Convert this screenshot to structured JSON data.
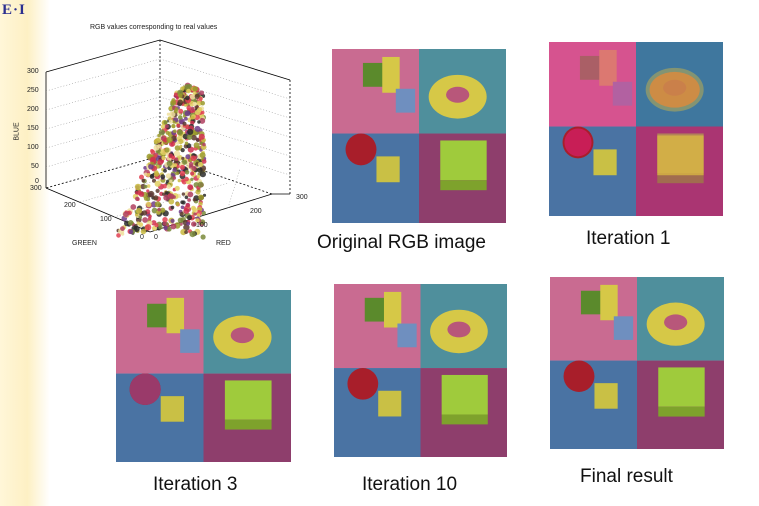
{
  "slide": {
    "logo": "E·I"
  },
  "plot": {
    "title": "RGB values corresponding to real values",
    "zlabel": "BLUE",
    "xlabel": "GREEN",
    "ylabel": "RED",
    "z_ticks": [
      "300",
      "250",
      "200",
      "150",
      "100",
      "50",
      "0"
    ],
    "green_ticks": [
      "300",
      "200",
      "100",
      "0"
    ],
    "red_ticks": [
      "0",
      "100",
      "200",
      "300"
    ]
  },
  "captions": {
    "original": "Original RGB image",
    "iter1": "Iteration 1",
    "iter3": "Iteration 3",
    "iter10": "Iteration 10",
    "final": "Final result"
  },
  "colors": {
    "pink_quadrant": "#c96b91",
    "teal_quadrant": "#4f8f9c",
    "blue_quadrant": "#4a73a3",
    "magenta_quadrant": "#8e3e6c",
    "yellow_object": "#d6c847",
    "green_object": "#9fcb3c",
    "red_sphere": "#a81e2a"
  }
}
